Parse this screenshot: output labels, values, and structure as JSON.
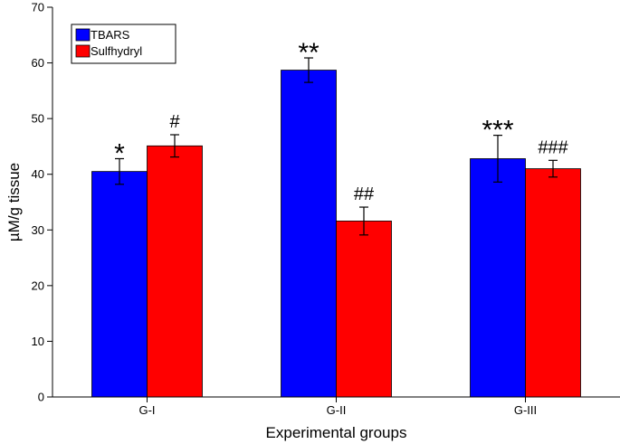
{
  "chart_data": {
    "type": "bar",
    "title": "",
    "xlabel": "Experimental groups",
    "ylabel": "µM/g tissue",
    "ylim": [
      0,
      70
    ],
    "yticks": [
      0,
      10,
      20,
      30,
      40,
      50,
      60,
      70
    ],
    "categories": [
      "G-I",
      "G-II",
      "G-III"
    ],
    "series": [
      {
        "name": "TBARS",
        "color": "#0000ff",
        "values": [
          40.5,
          58.7,
          42.8
        ],
        "errors": [
          2.3,
          2.2,
          4.2
        ],
        "annotations": [
          "*",
          "**",
          "***"
        ]
      },
      {
        "name": "Sulfhydryl",
        "color": "#ff0000",
        "values": [
          45.1,
          31.6,
          41.0
        ],
        "errors": [
          2.0,
          2.5,
          1.5
        ],
        "annotations": [
          "#",
          "##",
          "###"
        ]
      }
    ],
    "legend_position": "top-left",
    "grid": false
  }
}
